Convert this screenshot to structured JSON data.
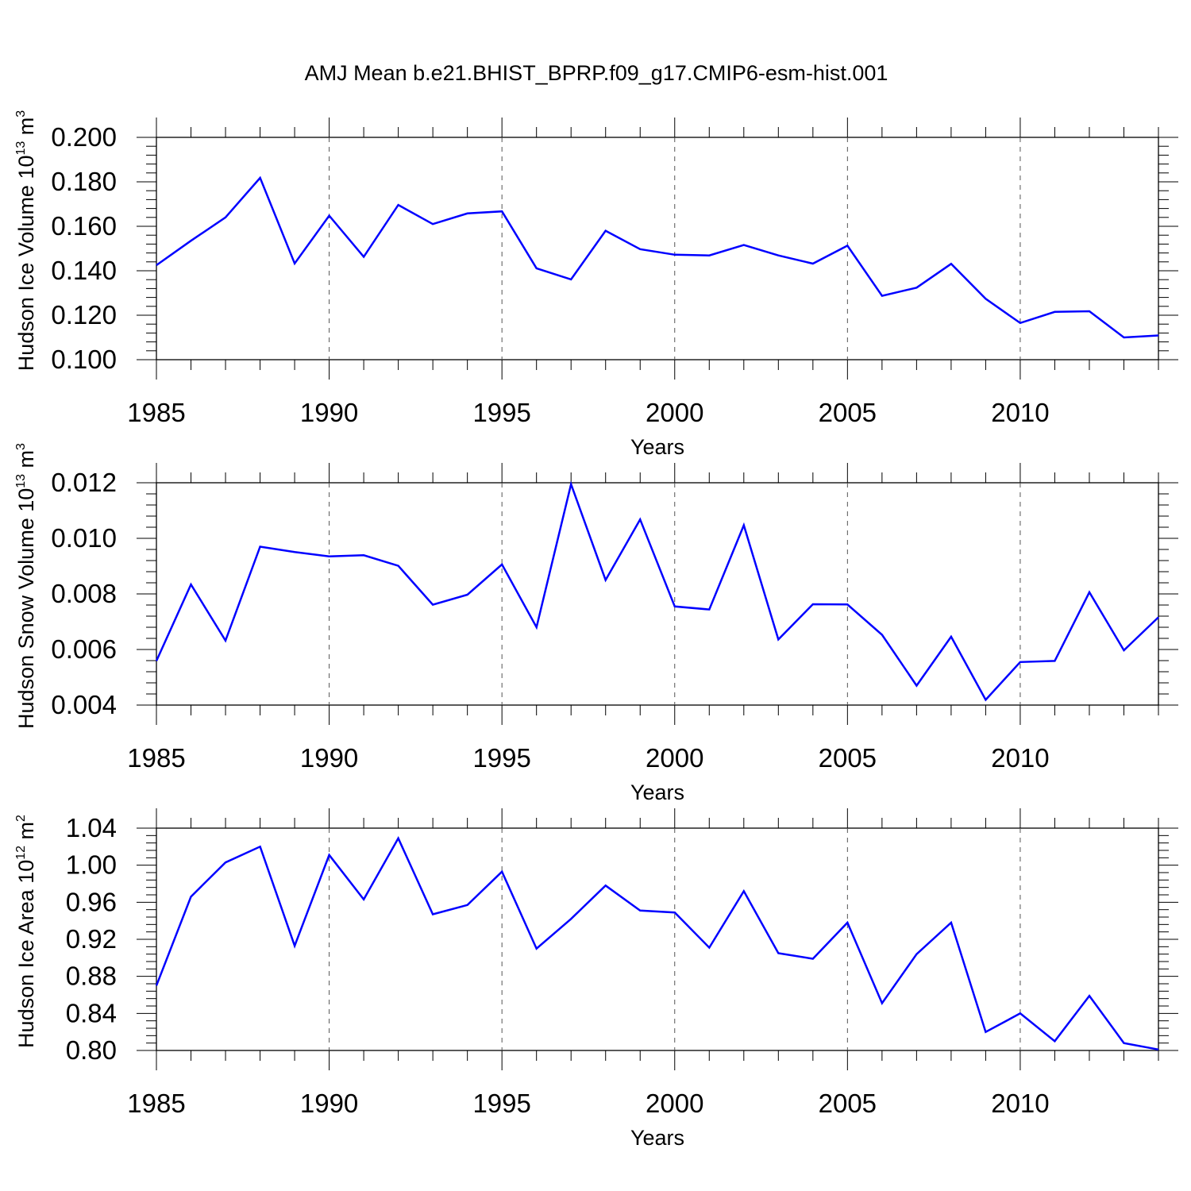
{
  "title": "AMJ Mean b.e21.BHIST_BPRP.f09_g17.CMIP6-esm-hist.001",
  "line_color": "#0000ff",
  "chart_data": [
    {
      "type": "line",
      "xlabel": "Years",
      "ylabel": {
        "text": "Hudson Ice Volume 10",
        "exp": "13",
        "unit": " m",
        "unit_exp": "3"
      },
      "xlim": [
        1985,
        2014
      ],
      "ylim": [
        0.1,
        0.2
      ],
      "xticks": [
        "1985",
        "1990",
        "1995",
        "2000",
        "2005",
        "2010"
      ],
      "yticks": [
        "0.100",
        "0.120",
        "0.140",
        "0.160",
        "0.180",
        "0.200"
      ],
      "grid": "dashed vertical at major x ticks",
      "x": [
        1985,
        1986,
        1987,
        1988,
        1989,
        1990,
        1991,
        1992,
        1993,
        1994,
        1995,
        1996,
        1997,
        1998,
        1999,
        2000,
        2001,
        2002,
        2003,
        2004,
        2005,
        2006,
        2007,
        2008,
        2009,
        2010,
        2011,
        2012,
        2013,
        2014
      ],
      "values": [
        0.1425,
        0.1535,
        0.164,
        0.1818,
        0.1433,
        0.1648,
        0.1463,
        0.1696,
        0.161,
        0.1658,
        0.1667,
        0.1411,
        0.1361,
        0.158,
        0.1497,
        0.1472,
        0.1469,
        0.1516,
        0.1469,
        0.1432,
        0.1513,
        0.1287,
        0.1324,
        0.1431,
        0.1274,
        0.1165,
        0.1215,
        0.1218,
        0.11,
        0.1109
      ]
    },
    {
      "type": "line",
      "xlabel": "Years",
      "ylabel": {
        "text": "Hudson Snow Volume 10",
        "exp": "13",
        "unit": " m",
        "unit_exp": "3"
      },
      "xlim": [
        1985,
        2014
      ],
      "ylim": [
        0.004,
        0.012
      ],
      "xticks": [
        "1985",
        "1990",
        "1995",
        "2000",
        "2005",
        "2010"
      ],
      "yticks": [
        "0.004",
        "0.006",
        "0.008",
        "0.010",
        "0.012"
      ],
      "grid": "dashed vertical at major x ticks",
      "x": [
        1985,
        1986,
        1987,
        1988,
        1989,
        1990,
        1991,
        1992,
        1993,
        1994,
        1995,
        1996,
        1997,
        1998,
        1999,
        2000,
        2001,
        2002,
        2003,
        2004,
        2005,
        2006,
        2007,
        2008,
        2009,
        2010,
        2011,
        2012,
        2013,
        2014
      ],
      "values": [
        0.00559,
        0.00834,
        0.00632,
        0.0097,
        0.00951,
        0.00935,
        0.00939,
        0.00901,
        0.00761,
        0.00797,
        0.00906,
        0.0068,
        0.01195,
        0.0085,
        0.01068,
        0.00755,
        0.00744,
        0.01047,
        0.00636,
        0.00763,
        0.00762,
        0.00653,
        0.0047,
        0.00646,
        0.00419,
        0.00555,
        0.00559,
        0.00806,
        0.00597,
        0.00716
      ]
    },
    {
      "type": "line",
      "xlabel": "Years",
      "ylabel": {
        "text": "Hudson Ice Area 10",
        "exp": "12",
        "unit": " m",
        "unit_exp": "2"
      },
      "xlim": [
        1985,
        2014
      ],
      "ylim": [
        0.8,
        1.04
      ],
      "xticks": [
        "1985",
        "1990",
        "1995",
        "2000",
        "2005",
        "2010"
      ],
      "yticks": [
        "0.80",
        "0.84",
        "0.88",
        "0.92",
        "0.96",
        "1.00",
        "1.04"
      ],
      "grid": "dashed vertical at major x ticks",
      "x": [
        1985,
        1986,
        1987,
        1988,
        1989,
        1990,
        1991,
        1992,
        1993,
        1994,
        1995,
        1996,
        1997,
        1998,
        1999,
        2000,
        2001,
        2002,
        2003,
        2004,
        2005,
        2006,
        2007,
        2008,
        2009,
        2010,
        2011,
        2012,
        2013,
        2014
      ],
      "values": [
        0.87,
        0.966,
        1.003,
        1.02,
        0.913,
        1.011,
        0.963,
        1.029,
        0.947,
        0.957,
        0.993,
        0.91,
        0.942,
        0.978,
        0.951,
        0.949,
        0.911,
        0.972,
        0.905,
        0.899,
        0.938,
        0.851,
        0.904,
        0.938,
        0.82,
        0.84,
        0.81,
        0.859,
        0.808,
        0.801
      ]
    }
  ]
}
